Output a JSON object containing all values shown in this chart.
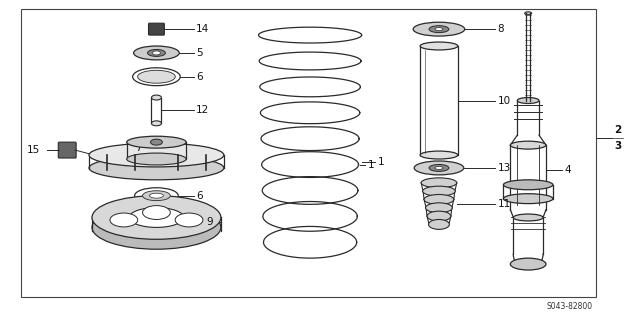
{
  "bg_color": "#ffffff",
  "line_color": "#2a2a2a",
  "fig_width": 6.4,
  "fig_height": 3.19,
  "dpi": 100,
  "part_code": "S043-82800"
}
